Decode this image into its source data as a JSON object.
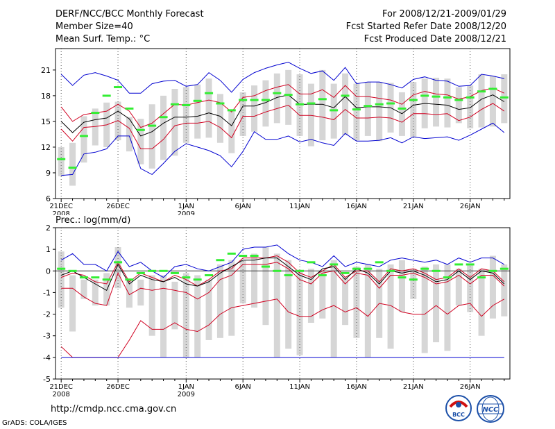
{
  "header": {
    "left": [
      "DERF/NCC/BCC Monthly Forecast",
      "Member Size=40",
      "Mean Surf. Temp.: °C"
    ],
    "right": [
      "For 2008/12/21-2009/01/29",
      "Fcst Started Refer Date 2008/12/20",
      "Fcst Produced Date 2008/12/21"
    ]
  },
  "footer": {
    "url": "http://cmdp.ncc.cma.gov.cn",
    "credit": "GrADS: COLA/IGES"
  },
  "logos": {
    "bcc": "BCC",
    "ncc": "NCC"
  },
  "colors": {
    "median": "#000000",
    "quartile": "#d00020",
    "extreme": "#0000d0",
    "member": "#33ee33",
    "box": "#d6d6d6",
    "zero": "#333333"
  },
  "chart_data": [
    {
      "type": "line",
      "title": "Mean Surf. Temp.: °C",
      "x_tick_labels": [
        {
          "day": 0,
          "label": "21DEC",
          "sub": "2008"
        },
        {
          "day": 5,
          "label": "26DEC",
          "sub": ""
        },
        {
          "day": 11,
          "label": "1JAN",
          "sub": "2009"
        },
        {
          "day": 16,
          "label": "6JAN",
          "sub": ""
        },
        {
          "day": 21,
          "label": "11JAN",
          "sub": ""
        },
        {
          "day": 26,
          "label": "16JAN",
          "sub": ""
        },
        {
          "day": 31,
          "label": "21JAN",
          "sub": ""
        },
        {
          "day": 36,
          "label": "26JAN",
          "sub": ""
        }
      ],
      "yticks": [
        6,
        9,
        12,
        15,
        18,
        21
      ],
      "ylim": [
        6,
        23.5
      ],
      "xlim": [
        -0.5,
        39.5
      ],
      "series": [
        {
          "name": "max",
          "role": "extreme",
          "values": [
            20.5,
            19.2,
            20.4,
            20.7,
            20.3,
            19.8,
            18.3,
            18.3,
            19.4,
            19.7,
            19.8,
            19.1,
            19.3,
            20.7,
            19.8,
            18.4,
            19.9,
            20.7,
            21.2,
            21.6,
            21.9,
            21.2,
            20.6,
            20.9,
            19.8,
            21.3,
            19.4,
            19.6,
            19.6,
            19.3,
            18.9,
            19.9,
            20.2,
            19.8,
            19.7,
            19.1,
            19.2,
            20.5,
            20.3,
            20.0
          ]
        },
        {
          "name": "q75",
          "role": "quartile",
          "values": [
            16.7,
            15.0,
            15.8,
            16.0,
            16.2,
            17.0,
            16.2,
            14.3,
            14.8,
            15.9,
            17.0,
            16.9,
            17.2,
            17.5,
            17.2,
            16.1,
            17.8,
            18.0,
            18.6,
            19.0,
            19.3,
            18.2,
            18.2,
            18.7,
            17.8,
            19.2,
            17.9,
            17.9,
            17.7,
            17.5,
            17.0,
            18.1,
            18.5,
            18.2,
            18.1,
            17.6,
            17.9,
            18.6,
            18.9,
            18.3
          ]
        },
        {
          "name": "median",
          "role": "median",
          "values": [
            15.0,
            13.7,
            14.9,
            15.2,
            15.4,
            16.2,
            15.3,
            13.3,
            13.8,
            14.8,
            15.5,
            15.5,
            15.6,
            16.0,
            15.6,
            14.5,
            16.8,
            16.8,
            17.2,
            17.8,
            18.1,
            17.0,
            17.0,
            17.0,
            16.6,
            17.9,
            16.6,
            16.7,
            16.7,
            16.6,
            15.9,
            16.9,
            17.1,
            17.0,
            16.9,
            16.4,
            16.6,
            17.6,
            18.1,
            17.3
          ]
        },
        {
          "name": "q25",
          "role": "quartile",
          "values": [
            14.1,
            12.7,
            14.3,
            14.4,
            14.6,
            15.1,
            14.2,
            11.8,
            11.8,
            12.9,
            14.5,
            14.8,
            14.8,
            15.0,
            14.3,
            13.1,
            15.6,
            15.6,
            16.1,
            16.5,
            16.9,
            15.7,
            15.7,
            15.5,
            15.2,
            16.4,
            15.4,
            15.4,
            15.5,
            15.4,
            14.9,
            15.9,
            15.9,
            15.8,
            15.9,
            15.1,
            15.5,
            16.4,
            17.1,
            16.2
          ]
        },
        {
          "name": "min",
          "role": "extreme",
          "values": [
            8.7,
            8.8,
            11.2,
            11.4,
            11.8,
            13.3,
            13.3,
            9.5,
            8.8,
            10.1,
            11.5,
            12.4,
            12.0,
            11.6,
            11.0,
            9.7,
            11.5,
            13.8,
            12.9,
            12.9,
            13.3,
            12.6,
            12.9,
            12.5,
            12.2,
            13.6,
            12.7,
            12.7,
            12.8,
            13.1,
            12.5,
            13.2,
            13.0,
            13.1,
            13.2,
            12.8,
            13.4,
            14.1,
            14.8,
            13.7
          ]
        },
        {
          "name": "box_hi",
          "role": "box",
          "values": [
            12.0,
            12.5,
            15.6,
            16.5,
            17.2,
            17.3,
            15.5,
            15.3,
            17.0,
            18.0,
            18.8,
            19.0,
            19.3,
            20.0,
            18.2,
            16.4,
            18.4,
            19.2,
            19.8,
            20.6,
            21.0,
            20.5,
            19.4,
            21.0,
            19.4,
            20.6,
            19.4,
            19.6,
            19.6,
            19.5,
            18.4,
            19.6,
            20.0,
            20.1,
            20.0,
            19.0,
            19.2,
            20.5,
            20.3,
            20.5
          ]
        },
        {
          "name": "box_lo",
          "role": "box",
          "values": [
            8.6,
            7.5,
            10.2,
            12.2,
            12.0,
            12.8,
            11.5,
            10.0,
            9.5,
            10.5,
            11.0,
            12.5,
            13.0,
            13.1,
            12.5,
            11.3,
            13.3,
            13.8,
            14.4,
            14.8,
            14.6,
            13.3,
            12.1,
            12.8,
            13.0,
            13.4,
            12.8,
            13.3,
            12.7,
            13.7,
            13.3,
            13.2,
            14.2,
            14.4,
            14.3,
            14.8,
            14.2,
            14.3,
            14.4,
            14.8
          ]
        },
        {
          "name": "member",
          "role": "member",
          "values": [
            10.6,
            9.6,
            13.3,
            16.0,
            18.0,
            19.0,
            16.5,
            14.0,
            14.5,
            15.5,
            17.0,
            16.9,
            17.4,
            18.3,
            17.1,
            16.3,
            17.5,
            17.5,
            17.5,
            18.3,
            18.1,
            17.0,
            17.1,
            17.6,
            16.3,
            18.0,
            16.4,
            16.8,
            17.0,
            17.1,
            16.5,
            17.5,
            18.0,
            17.9,
            17.8,
            17.5,
            17.8,
            18.5,
            18.8,
            17.8
          ]
        }
      ]
    },
    {
      "type": "line",
      "title": "Prec.: log(mm/d)",
      "x_tick_labels": [
        {
          "day": 0,
          "label": "21DEC",
          "sub": "2008"
        },
        {
          "day": 5,
          "label": "26DEC",
          "sub": ""
        },
        {
          "day": 11,
          "label": "1JAN",
          "sub": "2009"
        },
        {
          "day": 16,
          "label": "6JAN",
          "sub": ""
        },
        {
          "day": 21,
          "label": "11JAN",
          "sub": ""
        },
        {
          "day": 26,
          "label": "16JAN",
          "sub": ""
        },
        {
          "day": 31,
          "label": "21JAN",
          "sub": ""
        },
        {
          "day": 36,
          "label": "26JAN",
          "sub": ""
        }
      ],
      "yticks": [
        -5,
        -4,
        -3,
        -2,
        -1,
        0,
        1,
        2
      ],
      "ylim": [
        -5,
        2
      ],
      "xlim": [
        -0.5,
        39.5
      ],
      "zero_line": 0,
      "series": [
        {
          "name": "max",
          "role": "extreme",
          "values": [
            0.5,
            0.8,
            0.3,
            0.3,
            0.0,
            0.9,
            0.2,
            0.4,
            0.0,
            -0.3,
            0.2,
            0.3,
            0.1,
            0.0,
            0.2,
            0.4,
            1.0,
            1.1,
            1.1,
            1.2,
            0.8,
            0.5,
            0.4,
            0.2,
            0.7,
            0.2,
            0.4,
            0.3,
            0.2,
            0.5,
            0.6,
            0.5,
            0.4,
            0.5,
            0.3,
            0.6,
            0.4,
            0.6,
            0.6,
            0.3
          ]
        },
        {
          "name": "q75",
          "role": "quartile",
          "values": [
            -0.3,
            -0.1,
            -0.2,
            -0.5,
            -0.6,
            0.4,
            -0.5,
            -0.1,
            -0.3,
            -0.5,
            -0.2,
            -0.4,
            -0.7,
            -0.4,
            0.0,
            0.1,
            0.6,
            0.6,
            0.6,
            0.7,
            0.4,
            -0.1,
            -0.3,
            0.0,
            0.3,
            -0.3,
            0.0,
            0.0,
            -0.5,
            0.1,
            0.0,
            0.1,
            -0.1,
            -0.4,
            -0.3,
            0.1,
            -0.3,
            0.1,
            0.0,
            -0.5
          ]
        },
        {
          "name": "median",
          "role": "median",
          "values": [
            -0.2,
            0.0,
            -0.3,
            -0.6,
            -0.9,
            0.3,
            -0.6,
            -0.2,
            -0.4,
            -0.5,
            -0.3,
            -0.6,
            -0.7,
            -0.5,
            -0.1,
            0.2,
            0.5,
            0.5,
            0.6,
            0.6,
            0.2,
            -0.2,
            -0.4,
            0.1,
            0.2,
            -0.4,
            0.1,
            -0.1,
            -0.6,
            0.0,
            -0.1,
            0.0,
            -0.2,
            -0.5,
            -0.4,
            0.0,
            -0.4,
            0.0,
            -0.1,
            -0.6
          ]
        },
        {
          "name": "q25",
          "role": "quartile",
          "values": [
            -0.8,
            -0.8,
            -1.2,
            -1.5,
            -1.6,
            -0.1,
            -1.1,
            -0.8,
            -0.9,
            -0.8,
            -0.9,
            -1.0,
            -1.3,
            -1.0,
            -0.4,
            -0.2,
            0.3,
            0.3,
            0.3,
            0.4,
            0.1,
            -0.4,
            -0.6,
            -0.1,
            0.0,
            -0.6,
            -0.1,
            -0.2,
            -0.8,
            -0.2,
            -0.2,
            -0.1,
            -0.3,
            -0.6,
            -0.5,
            -0.2,
            -0.6,
            -0.2,
            -0.2,
            -0.7
          ]
        },
        {
          "name": "min",
          "role": "quartile",
          "values": [
            -3.5,
            -4.0,
            -4.0,
            -4.0,
            -4.0,
            -4.0,
            -3.2,
            -2.3,
            -2.7,
            -2.7,
            -2.4,
            -2.7,
            -2.8,
            -2.5,
            -2.0,
            -1.7,
            -1.6,
            -1.5,
            -1.4,
            -1.3,
            -1.9,
            -2.1,
            -2.1,
            -1.8,
            -1.6,
            -1.9,
            -1.7,
            -2.1,
            -1.5,
            -1.6,
            -1.9,
            -2.0,
            -2.0,
            -1.6,
            -2.0,
            -1.6,
            -1.5,
            -2.1,
            -1.6,
            -1.3
          ]
        },
        {
          "name": "floor",
          "role": "floor",
          "values": [
            -4.0,
            -4.0,
            -4.0,
            -4.0,
            -4.0,
            -4.0,
            -4.0,
            -4.0,
            -4.0,
            -4.0,
            -4.0,
            -4.0,
            -4.0,
            -4.0,
            -4.0,
            -4.0,
            -4.0,
            -4.0,
            -4.0,
            -4.0,
            -4.0,
            -4.0,
            -4.0,
            -4.0,
            -4.0,
            -4.0,
            -4.0,
            -4.0,
            -4.0,
            -4.0,
            -4.0,
            -4.0,
            -4.0,
            -4.0,
            -4.0,
            -4.0,
            -4.0,
            -4.0,
            -4.0,
            -4.0
          ]
        },
        {
          "name": "box_hi",
          "role": "box",
          "values": [
            0.9,
            -0.2,
            -0.4,
            -0.4,
            -0.1,
            1.1,
            -0.4,
            -0.4,
            -0.2,
            -0.2,
            -0.5,
            -0.1,
            -0.2,
            -0.4,
            0.3,
            0.5,
            0.5,
            0.8,
            1.1,
            0.8,
            0.5,
            0.0,
            0.1,
            0.0,
            0.5,
            -0.3,
            0.2,
            0.3,
            0.1,
            0.3,
            0.5,
            0.1,
            0.2,
            0.3,
            0.3,
            0.1,
            0.3,
            0.1,
            0.7,
            0.3
          ]
        },
        {
          "name": "box_lo",
          "role": "box",
          "values": [
            -1.7,
            -2.8,
            -1.3,
            -1.6,
            -1.6,
            -0.8,
            -1.7,
            -1.6,
            -3.0,
            -4.0,
            -2.7,
            -4.0,
            -4.0,
            -3.2,
            -3.1,
            -3.0,
            -1.5,
            -1.7,
            -2.5,
            -4.0,
            -3.6,
            -3.9,
            -2.4,
            -2.2,
            -4.0,
            -2.5,
            -3.1,
            -4.0,
            -3.1,
            -3.6,
            -1.9,
            -1.3,
            -3.8,
            -3.3,
            -3.7,
            -1.6,
            -1.9,
            -3.0,
            -2.2,
            -2.1
          ]
        },
        {
          "name": "member",
          "role": "member",
          "values": [
            0.1,
            0.0,
            -0.3,
            -0.3,
            -0.4,
            0.4,
            -0.4,
            -0.1,
            0.0,
            0.0,
            -0.1,
            -0.3,
            -0.4,
            -0.2,
            0.5,
            0.8,
            0.7,
            0.7,
            0.2,
            0.0,
            -0.2,
            0.0,
            0.4,
            -0.2,
            0.3,
            -0.1,
            0.1,
            0.1,
            0.4,
            0.0,
            -0.3,
            -0.4,
            0.1,
            0.0,
            -0.3,
            0.3,
            0.3,
            -0.3,
            0.0,
            0.1
          ]
        }
      ]
    }
  ]
}
